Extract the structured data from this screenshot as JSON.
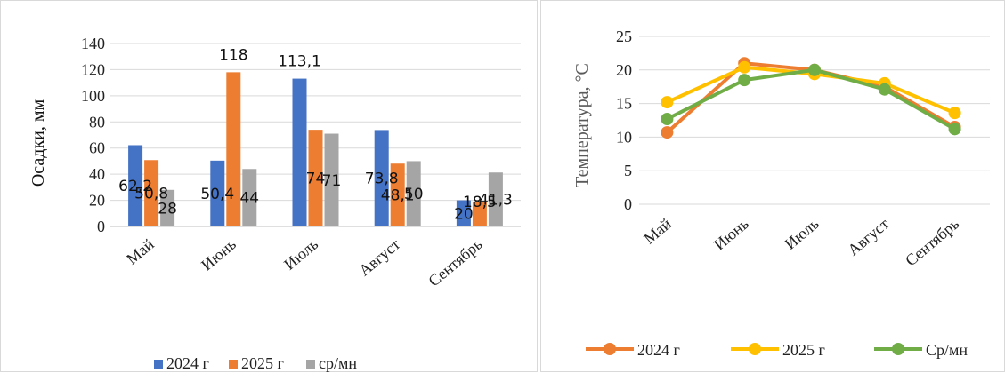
{
  "chart_data": [
    {
      "type": "bar",
      "title": "",
      "ylabel": "Осадки, мм",
      "xlabel": "",
      "categories": [
        "Май",
        "Июнь",
        "Июль",
        "Август",
        "Сентябрь"
      ],
      "ylim": [
        0,
        140
      ],
      "yticks": [
        0,
        20,
        40,
        60,
        80,
        100,
        120,
        140
      ],
      "grid": true,
      "legend_position": "bottom",
      "series": [
        {
          "name": "2024 г",
          "color": "#4472c4",
          "values": [
            62.2,
            50.4,
            113.1,
            73.8,
            20
          ],
          "labels": [
            "62,2",
            "50,4",
            "113,1",
            "73,8",
            "20"
          ]
        },
        {
          "name": "2025 г",
          "color": "#ed7d31",
          "values": [
            50.8,
            118,
            74,
            48.1,
            18.5
          ],
          "labels": [
            "50,8",
            "118",
            "74",
            "48,1",
            "18,5"
          ]
        },
        {
          "name": "ср/мн",
          "color": "#a5a5a5",
          "values": [
            28,
            44,
            71,
            50,
            41.3
          ],
          "labels": [
            "28",
            "44",
            "71",
            "50",
            "41,3"
          ]
        }
      ]
    },
    {
      "type": "line",
      "title": "",
      "ylabel": "Температура, °С",
      "xlabel": "",
      "categories": [
        "Май",
        "Июнь",
        "Июль",
        "Август",
        "Сентябрь"
      ],
      "ylim": [
        0,
        25
      ],
      "yticks": [
        0,
        5,
        10,
        15,
        20,
        25
      ],
      "grid": true,
      "legend_position": "bottom",
      "series": [
        {
          "name": "2024 г",
          "color": "#ed7d31",
          "values": [
            10.7,
            21.0,
            20.0,
            17.5,
            11.5
          ]
        },
        {
          "name": "2025 г",
          "color": "#ffc000",
          "values": [
            15.2,
            20.4,
            19.4,
            18.0,
            13.6
          ]
        },
        {
          "name": "Ср/мн",
          "color": "#70ad47",
          "values": [
            12.7,
            18.5,
            20.0,
            17.1,
            11.2
          ]
        }
      ]
    }
  ]
}
